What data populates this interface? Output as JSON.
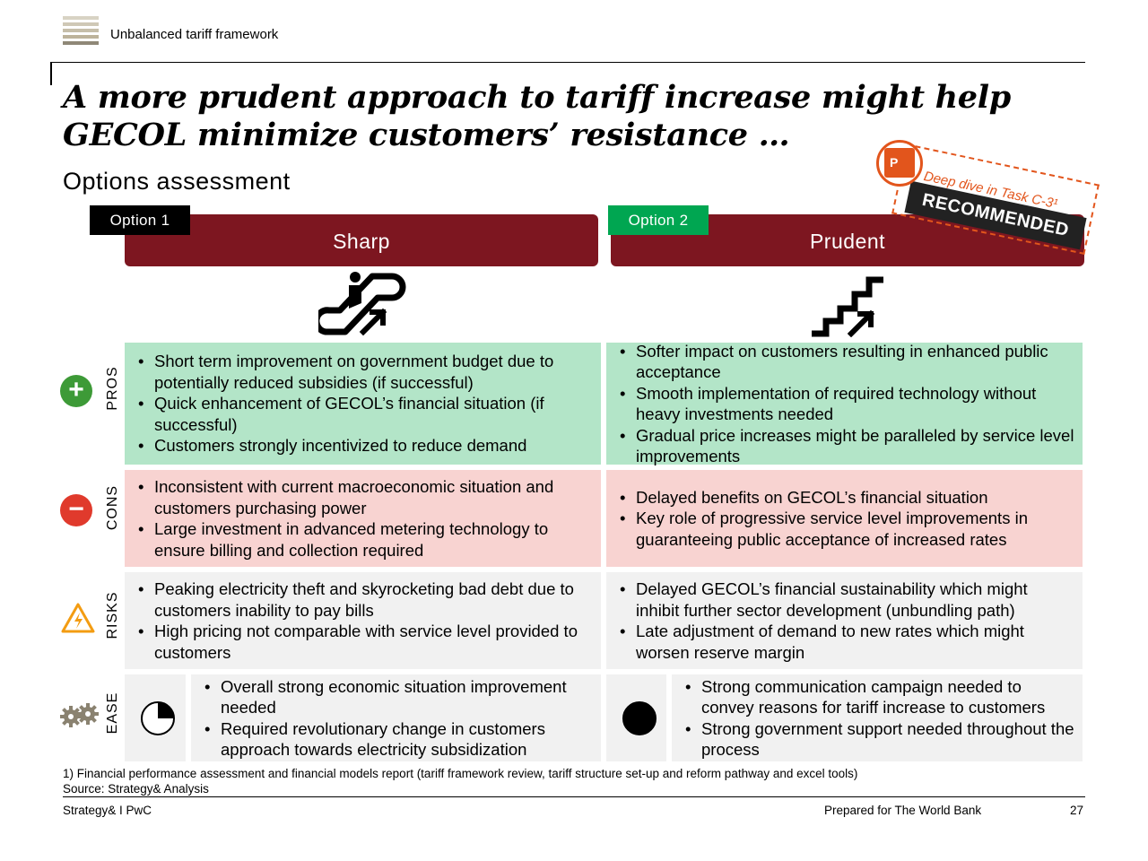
{
  "header": {
    "label": "Unbalanced tariff framework"
  },
  "title": "A more prudent approach to tariff increase might help GECOL minimize customers’ resistance …",
  "subtitle": "Options assessment",
  "recommendation": {
    "link_text": "Deep dive in Task C-3¹",
    "badge": "RECOMMENDED",
    "icon": "powerpoint-icon"
  },
  "options": [
    {
      "tag": "Option 1",
      "tag_color": "#000000",
      "name": "Sharp",
      "icon": "escalator-icon",
      "pros": [
        "Short term improvement on government budget due to potentially reduced subsidies (if successful)",
        "Quick enhancement of GECOL’s financial situation (if successful)",
        "Customers strongly incentivized to reduce demand"
      ],
      "cons": [
        "Inconsistent with current macroeconomic situation and customers purchasing power",
        "Large investment in advanced metering technology to ensure billing and collection required"
      ],
      "risks": [
        "Peaking electricity theft and skyrocketing bad debt due to customers inability to pay bills",
        "High pricing not comparable with service level provided to customers"
      ],
      "ease_level": 0.25,
      "ease": [
        "Overall strong economic situation improvement needed",
        "Required revolutionary change in customers approach towards electricity subsidization"
      ]
    },
    {
      "tag": "Option 2",
      "tag_color": "#00a651",
      "name": "Prudent",
      "icon": "stairs-icon",
      "pros": [
        "Softer impact on customers resulting in enhanced public acceptance",
        "Smooth implementation of required technology without heavy investments needed",
        "Gradual price increases might be paralleled by service level improvements"
      ],
      "cons": [
        "Delayed benefits on GECOL’s financial situation",
        "Key role of progressive service level improvements in guaranteeing public acceptance of increased rates"
      ],
      "risks": [
        "Delayed GECOL’s financial sustainability which might inhibit further sector development (unbundling path)",
        "Late adjustment of demand to new rates which might worsen reserve margin"
      ],
      "ease_level": 1.0,
      "ease": [
        "Strong communication campaign needed to convey reasons for tariff increase to customers",
        "Strong government support needed throughout the process"
      ]
    }
  ],
  "rows": {
    "pros": {
      "label": "PROS",
      "icon": "plus-icon",
      "color": "#3d9a37"
    },
    "cons": {
      "label": "CONS",
      "icon": "minus-icon",
      "color": "#e03a2c"
    },
    "risks": {
      "label": "RISKS",
      "icon": "warning-icon",
      "color": "#f39c12"
    },
    "ease": {
      "label": "EASE",
      "icon": "gears-icon",
      "color": "#8a8270"
    }
  },
  "footnote": "1) Financial performance assessment and financial models report (tariff framework review, tariff structure set-up and reform pathway and excel tools)",
  "source": "Source: Strategy& Analysis",
  "footer": {
    "left": "Strategy& I PwC",
    "center": "Prepared for The World Bank",
    "page": "27"
  }
}
